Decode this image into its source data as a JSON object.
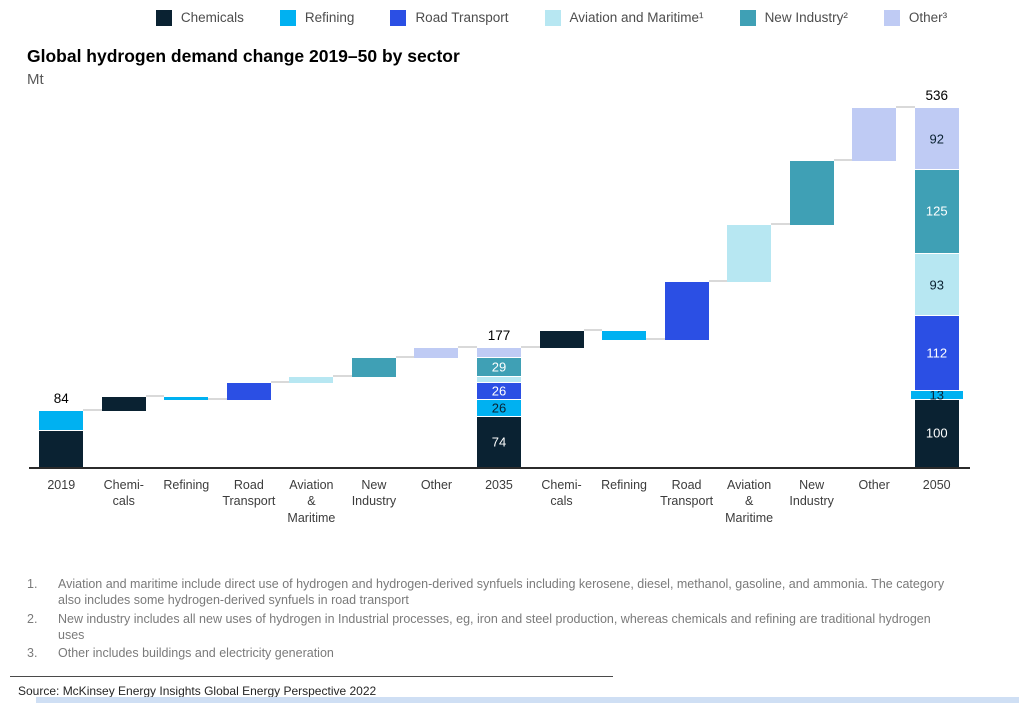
{
  "header": {
    "title": "Global hydrogen demand change 2019–50 by sector",
    "unit": "Mt"
  },
  "legend": {
    "position": "top",
    "items": [
      {
        "label": "Chemicals",
        "color": "#0a2232"
      },
      {
        "label": "Refining",
        "color": "#00b1f1"
      },
      {
        "label": "Road Transport",
        "color": "#2b4fe4"
      },
      {
        "label": "Aviation and Maritime¹",
        "color": "#b7e7f2"
      },
      {
        "label": "New Industry²",
        "color": "#3fa0b5"
      },
      {
        "label": "Other³",
        "color": "#bfcbf4"
      }
    ]
  },
  "chart_data": {
    "type": "waterfall",
    "title": "Global hydrogen demand change 2019–50 by sector",
    "xlabel": "",
    "ylabel": "Mt",
    "ylim": [
      0,
      560
    ],
    "grid": false,
    "legend_position": "top",
    "connector_color": "#d9d9d9",
    "columns": [
      {
        "kind": "total",
        "x_label_lines": [
          "2019"
        ],
        "total": 84,
        "total_label": "84",
        "segments": [
          {
            "sector": "Chemicals",
            "value": 54,
            "color": "#0a2232"
          },
          {
            "sector": "Refining",
            "value": 30,
            "color": "#00b1f1"
          }
        ]
      },
      {
        "kind": "step",
        "x_label_lines": [
          "Chemi-",
          "cals"
        ],
        "sector": "Chemicals",
        "start": 84,
        "end": 104,
        "color": "#0a2232"
      },
      {
        "kind": "step",
        "x_label_lines": [
          "Refining"
        ],
        "sector": "Refining",
        "start": 104,
        "end": 100,
        "color": "#00b1f1"
      },
      {
        "kind": "step",
        "x_label_lines": [
          "Road",
          "Transport"
        ],
        "sector": "Road Transport",
        "start": 100,
        "end": 126,
        "color": "#2b4fe4"
      },
      {
        "kind": "step",
        "x_label_lines": [
          "Aviation",
          "&",
          "Maritime"
        ],
        "sector": "Aviation and Maritime",
        "start": 126,
        "end": 134,
        "color": "#b7e7f2"
      },
      {
        "kind": "step",
        "x_label_lines": [
          "New",
          "Industry"
        ],
        "sector": "New Industry",
        "start": 134,
        "end": 163,
        "color": "#3fa0b5"
      },
      {
        "kind": "step",
        "x_label_lines": [
          "Other"
        ],
        "sector": "Other",
        "start": 163,
        "end": 177,
        "color": "#bfcbf4"
      },
      {
        "kind": "total",
        "x_label_lines": [
          "2035"
        ],
        "total": 177,
        "total_label": "177",
        "segments": [
          {
            "sector": "Chemicals",
            "value": 74,
            "color": "#0a2232",
            "label": "74",
            "label_color": "#ffffff"
          },
          {
            "sector": "Refining",
            "value": 26,
            "color": "#00b1f1",
            "label": "26",
            "label_color": "#0a2232"
          },
          {
            "sector": "Road Transport",
            "value": 26,
            "color": "#2b4fe4",
            "label": "26",
            "label_color": "#ffffff"
          },
          {
            "sector": "Aviation and Maritime",
            "value": 8,
            "color": "#b7e7f2"
          },
          {
            "sector": "New Industry",
            "value": 29,
            "color": "#3fa0b5",
            "label": "29",
            "label_color": "#ffffff"
          },
          {
            "sector": "Other",
            "value": 14,
            "color": "#bfcbf4"
          }
        ]
      },
      {
        "kind": "step",
        "x_label_lines": [
          "Chemi-",
          "cals"
        ],
        "sector": "Chemicals",
        "start": 177,
        "end": 203,
        "color": "#0a2232"
      },
      {
        "kind": "step",
        "x_label_lines": [
          "Refining"
        ],
        "sector": "Refining",
        "start": 203,
        "end": 190,
        "color": "#00b1f1"
      },
      {
        "kind": "step",
        "x_label_lines": [
          "Road",
          "Transport"
        ],
        "sector": "Road Transport",
        "start": 190,
        "end": 276,
        "color": "#2b4fe4"
      },
      {
        "kind": "step",
        "x_label_lines": [
          "Aviation",
          "&",
          "Maritime"
        ],
        "sector": "Aviation and Maritime",
        "start": 276,
        "end": 361,
        "color": "#b7e7f2"
      },
      {
        "kind": "step",
        "x_label_lines": [
          "New",
          "Industry"
        ],
        "sector": "New Industry",
        "start": 361,
        "end": 457,
        "color": "#3fa0b5"
      },
      {
        "kind": "step",
        "x_label_lines": [
          "Other"
        ],
        "sector": "Other",
        "start": 457,
        "end": 536,
        "color": "#bfcbf4"
      },
      {
        "kind": "total",
        "x_label_lines": [
          "2050"
        ],
        "total": 536,
        "total_label": "536",
        "segments": [
          {
            "sector": "Chemicals",
            "value": 100,
            "color": "#0a2232",
            "label": "100",
            "label_color": "#ffffff"
          },
          {
            "sector": "Refining",
            "value": 13,
            "color": "#00b1f1",
            "label": "13",
            "label_color": "#0a2232",
            "wide": true
          },
          {
            "sector": "Road Transport",
            "value": 112,
            "color": "#2b4fe4",
            "label": "112",
            "label_color": "#ffffff"
          },
          {
            "sector": "Aviation and Maritime",
            "value": 93,
            "color": "#b7e7f2",
            "label": "93",
            "label_color": "#0a2232"
          },
          {
            "sector": "New Industry",
            "value": 125,
            "color": "#3fa0b5",
            "label": "125",
            "label_color": "#ffffff"
          },
          {
            "sector": "Other",
            "value": 92,
            "color": "#bfcbf4",
            "label": "92",
            "label_color": "#0a2232"
          }
        ]
      }
    ]
  },
  "footnotes": [
    {
      "num": "1.",
      "text": "Aviation and maritime include direct use of hydrogen and hydrogen-derived synfuels including kerosene, diesel, methanol, gasoline, and ammonia. The category also includes some hydrogen-derived synfuels in road transport"
    },
    {
      "num": "2.",
      "text": "New industry includes all new uses of hydrogen in Industrial processes, eg, iron and steel production, whereas chemicals and refining are traditional hydrogen uses"
    },
    {
      "num": "3.",
      "text": "Other includes buildings and electricity generation"
    }
  ],
  "source": {
    "text": "Source: McKinsey Energy Insights Global Energy Perspective 2022"
  }
}
